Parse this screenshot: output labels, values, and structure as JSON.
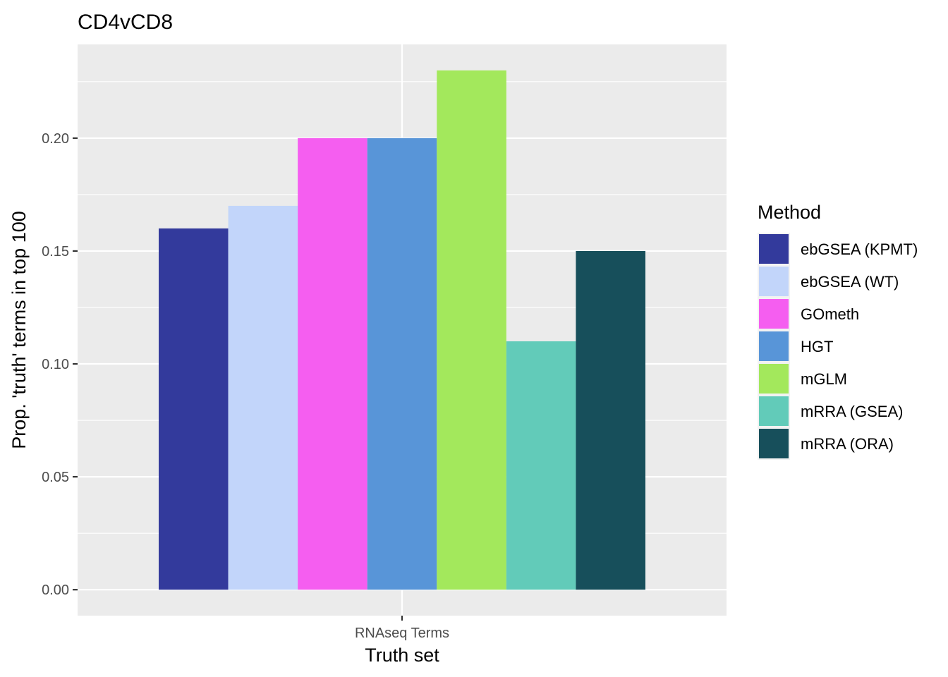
{
  "chart_data": {
    "type": "bar",
    "title": "CD4vCD8",
    "xlabel": "Truth set",
    "ylabel": "Prop. 'truth' terms in top 100",
    "categories": [
      "RNAseq Terms"
    ],
    "series": [
      {
        "name": "ebGSEA (KPMT)",
        "values": [
          0.16
        ],
        "color": "#333A9C"
      },
      {
        "name": "ebGSEA (WT)",
        "values": [
          0.17
        ],
        "color": "#C2D5FA"
      },
      {
        "name": "GOmeth",
        "values": [
          0.2
        ],
        "color": "#F55EF0"
      },
      {
        "name": "HGT",
        "values": [
          0.2
        ],
        "color": "#5895D8"
      },
      {
        "name": "mGLM",
        "values": [
          0.23
        ],
        "color": "#A3E85C"
      },
      {
        "name": "mRRA (GSEA)",
        "values": [
          0.11
        ],
        "color": "#62CBB9"
      },
      {
        "name": "mRRA (ORA)",
        "values": [
          0.15
        ],
        "color": "#174F5B"
      }
    ],
    "ylim": [
      -0.0115,
      0.2415
    ],
    "yticks": [
      0.0,
      0.05,
      0.1,
      0.15,
      0.2
    ],
    "ytick_labels": [
      "0.00",
      "0.05",
      "0.10",
      "0.15",
      "0.20"
    ],
    "legend": {
      "title": "Method",
      "position": "right"
    },
    "grid": true,
    "panel_background": "#EBEBEB"
  }
}
